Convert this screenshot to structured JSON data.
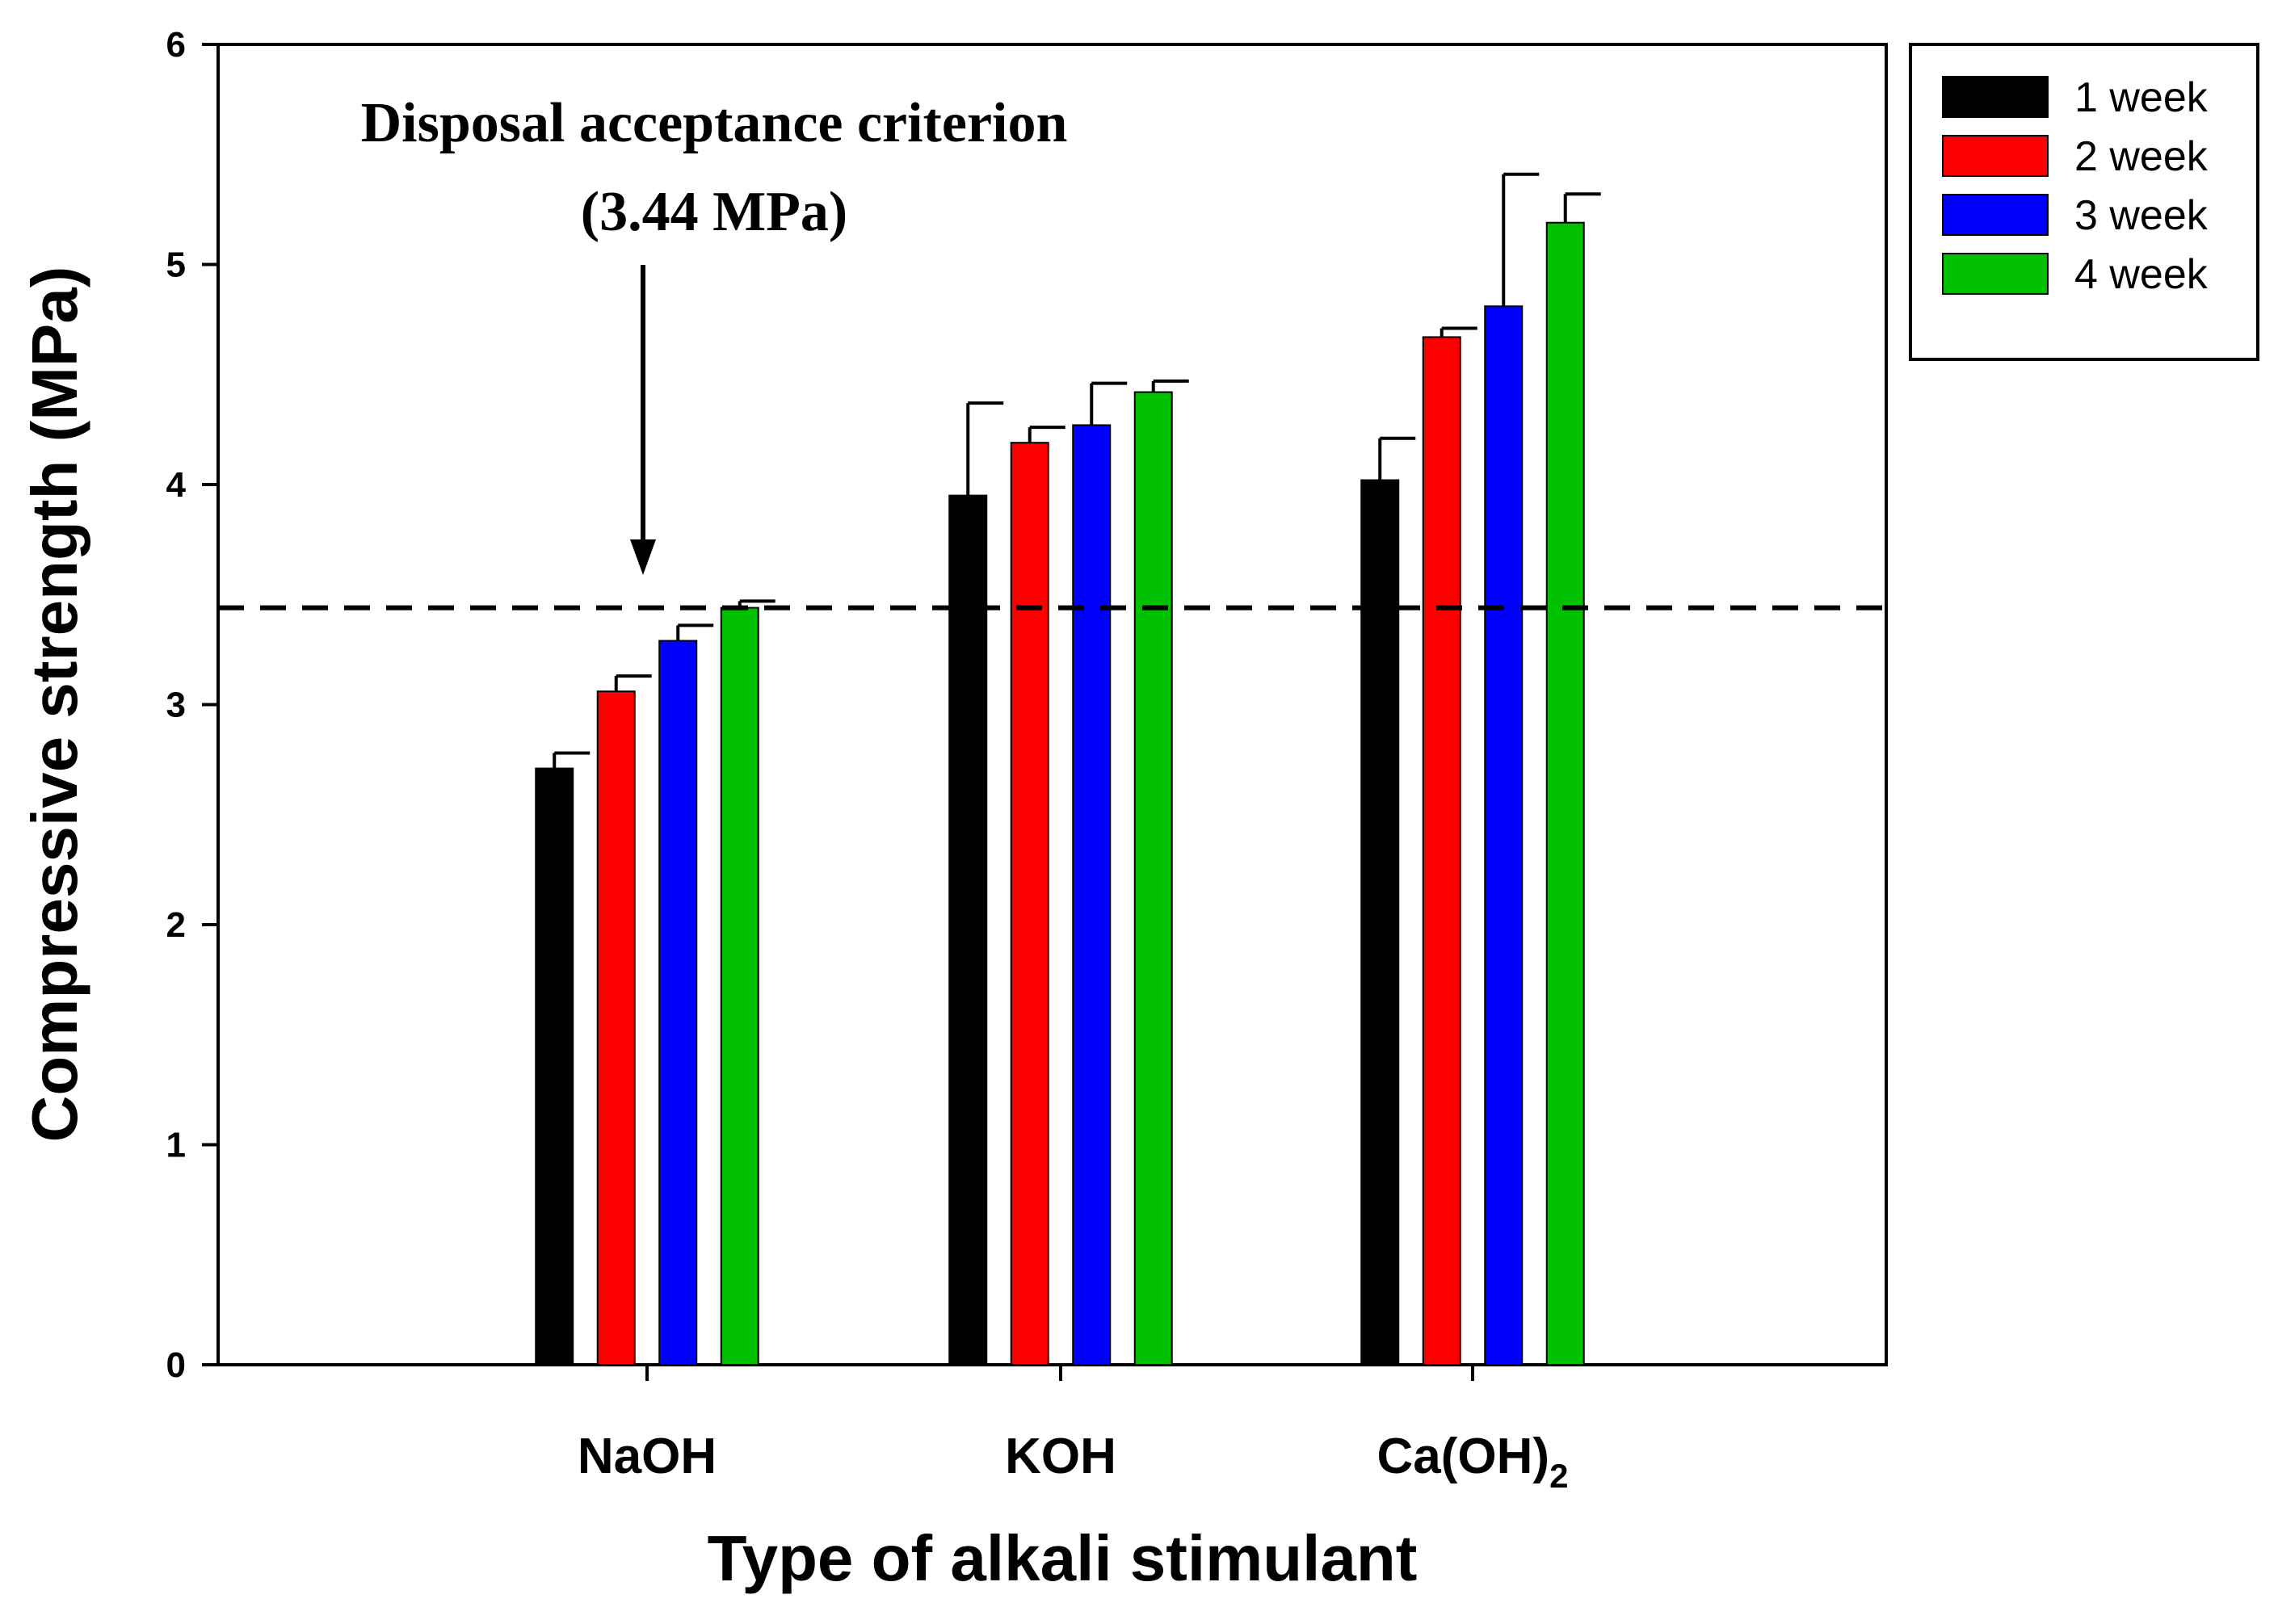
{
  "chart_data": {
    "type": "bar",
    "title": "",
    "xlabel": "Type of alkali stimulant",
    "ylabel": "Compressive strength (MPa)",
    "ylim": [
      0,
      6
    ],
    "yticks": [
      "0",
      "1",
      "2",
      "3",
      "4",
      "5",
      "6"
    ],
    "categories": [
      {
        "base": "NaOH",
        "sub": ""
      },
      {
        "base": "KOH",
        "sub": ""
      },
      {
        "base": "Ca(OH)",
        "sub": "2"
      }
    ],
    "series": [
      {
        "name": "1 week",
        "color": "#000000",
        "values": [
          2.71,
          3.95,
          4.02
        ],
        "errors": [
          0.07,
          0.42,
          0.19
        ]
      },
      {
        "name": "2 week",
        "color": "#ff0000",
        "values": [
          3.06,
          4.19,
          4.67
        ],
        "errors": [
          0.07,
          0.07,
          0.04
        ]
      },
      {
        "name": "3 week",
        "color": "#0000ff",
        "values": [
          3.29,
          4.27,
          4.81
        ],
        "errors": [
          0.07,
          0.19,
          0.6
        ]
      },
      {
        "name": "4 week",
        "color": "#00c000",
        "values": [
          3.44,
          4.42,
          5.19
        ],
        "errors": [
          0.03,
          0.05,
          0.13
        ]
      }
    ],
    "reference_line": {
      "value": 3.44,
      "style": "dashed"
    },
    "annotation": {
      "line1": "Disposal acceptance criterion",
      "line2": "(3.44 MPa)"
    },
    "legend_position": "outside-top-right",
    "grid": false
  }
}
